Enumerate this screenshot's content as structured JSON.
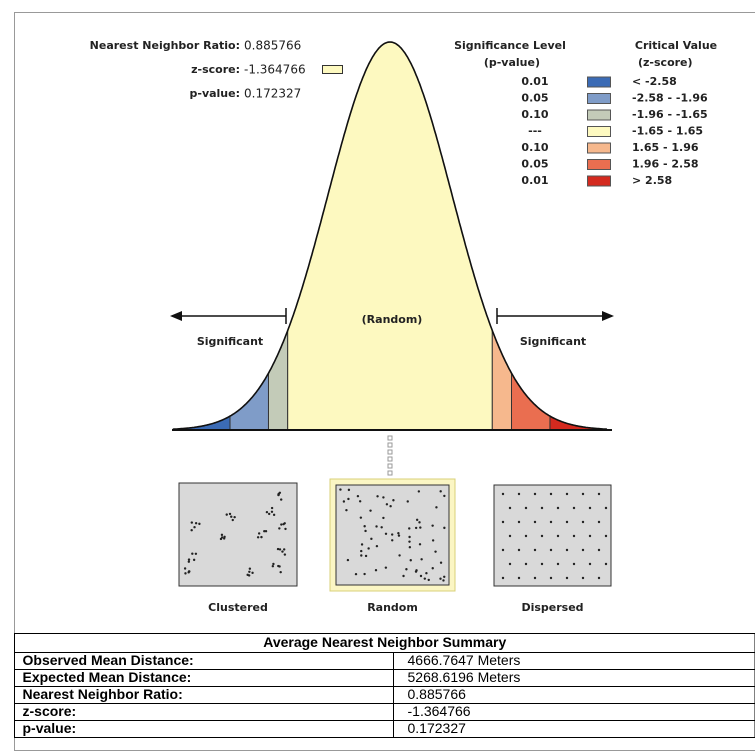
{
  "header": {
    "ratio_label": "Nearest Neighbor Ratio:",
    "ratio_value": "0.885766",
    "z_label": "z-score:",
    "z_value": "-1.364766",
    "p_label": "p-value:",
    "p_value": "0.172327"
  },
  "legend": {
    "sig_title": "Significance Level",
    "sig_sub": "(p-value)",
    "crit_title": "Critical Value",
    "crit_sub": "(z-score)",
    "rows": [
      {
        "p": "0.01",
        "z": "< -2.58",
        "color": "#3b6bb5"
      },
      {
        "p": "0.05",
        "z": "-2.58 - -1.96",
        "color": "#7f9cc8"
      },
      {
        "p": "0.10",
        "z": "-1.96 - -1.65",
        "color": "#c3cbb8"
      },
      {
        "p": "---",
        "z": "-1.65 - 1.65",
        "color": "#fdf9c0"
      },
      {
        "p": "0.10",
        "z": "1.65 - 1.96",
        "color": "#f6b88d"
      },
      {
        "p": "0.05",
        "z": "1.96 - 2.58",
        "color": "#ea6e50"
      },
      {
        "p": "0.01",
        "z": "> 2.58",
        "color": "#d42a1f"
      }
    ]
  },
  "curve": {
    "left": "Significant",
    "center": "(Random)",
    "right": "Significant"
  },
  "patterns": [
    "Clustered",
    "Random",
    "Dispersed"
  ],
  "table": {
    "title": "Average Nearest Neighbor Summary",
    "rows": [
      [
        "Observed Mean Distance:",
        "4666.7647 Meters"
      ],
      [
        "Expected Mean Distance:",
        "5268.6196 Meters"
      ],
      [
        "Nearest Neighbor Ratio:",
        "0.885766"
      ],
      [
        "z-score:",
        "-1.364766"
      ],
      [
        "p-value:",
        "0.172327"
      ]
    ]
  }
}
